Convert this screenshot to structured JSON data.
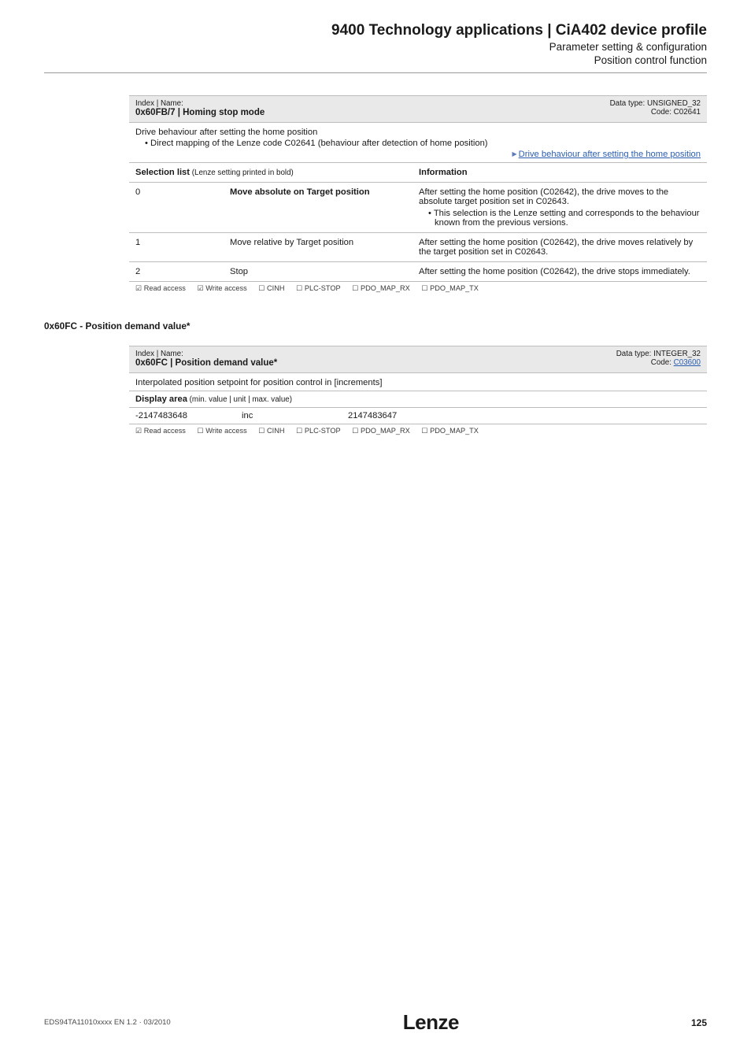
{
  "header": {
    "title": "9400 Technology applications | CiA402 device profile",
    "sub1": "Parameter setting & configuration",
    "sub2": "Position control function"
  },
  "param1": {
    "index_label": "Index | Name:",
    "index_name": "0x60FB/7 | Homing stop mode",
    "datatype": "Data type: UNSIGNED_32",
    "code": "Code: C02641",
    "desc_line1": "Drive behaviour after setting the home position",
    "desc_bullet": "• Direct mapping of the Lenze code C02641 (behaviour after detection of home position)",
    "link_text": "Drive behaviour after setting the home position",
    "sel_header": "Selection list",
    "sel_sub": " (Lenze setting printed in bold)",
    "info_header": "Information",
    "rows": [
      {
        "num": "0",
        "label": "Move absolute on Target position",
        "bold": true,
        "info": "After setting the home position (C02642), the drive moves to the absolute target position set in C02643.",
        "bullet": "• This selection is the Lenze setting and corresponds to the behaviour known from the previous versions."
      },
      {
        "num": "1",
        "label": "Move relative by Target position",
        "bold": false,
        "info": "After setting the home position (C02642), the drive moves relatively by the target position set in C02643.",
        "bullet": ""
      },
      {
        "num": "2",
        "label": "Stop",
        "bold": false,
        "info": "After setting the home position (C02642), the drive stops immediately.",
        "bullet": ""
      }
    ],
    "access": {
      "read": "☑ Read access",
      "write": "☑ Write access",
      "cinh": "☐ CINH",
      "plc": "☐ PLC-STOP",
      "rx": "☐ PDO_MAP_RX",
      "tx": "☐ PDO_MAP_TX"
    }
  },
  "section2_title": "0x60FC - Position demand value*",
  "param2": {
    "index_label": "Index | Name:",
    "index_name": "0x60FC | Position demand value*",
    "datatype": "Data type: INTEGER_32",
    "code_label": "Code: ",
    "code_link": "C03600",
    "desc": "Interpolated position setpoint for position control in [increments]",
    "disp_header": "Display area",
    "disp_sub": " (min. value | unit | max. value)",
    "min": "-2147483648",
    "unit": "inc",
    "max": "2147483647",
    "access": {
      "read": "☑ Read access",
      "write": "☐ Write access",
      "cinh": "☐ CINH",
      "plc": "☐ PLC-STOP",
      "rx": "☐ PDO_MAP_RX",
      "tx": "☐ PDO_MAP_TX"
    }
  },
  "footer": {
    "doc": "EDS94TA11010xxxx EN 1.2 · 03/2010",
    "logo": "Lenze",
    "page": "125"
  }
}
